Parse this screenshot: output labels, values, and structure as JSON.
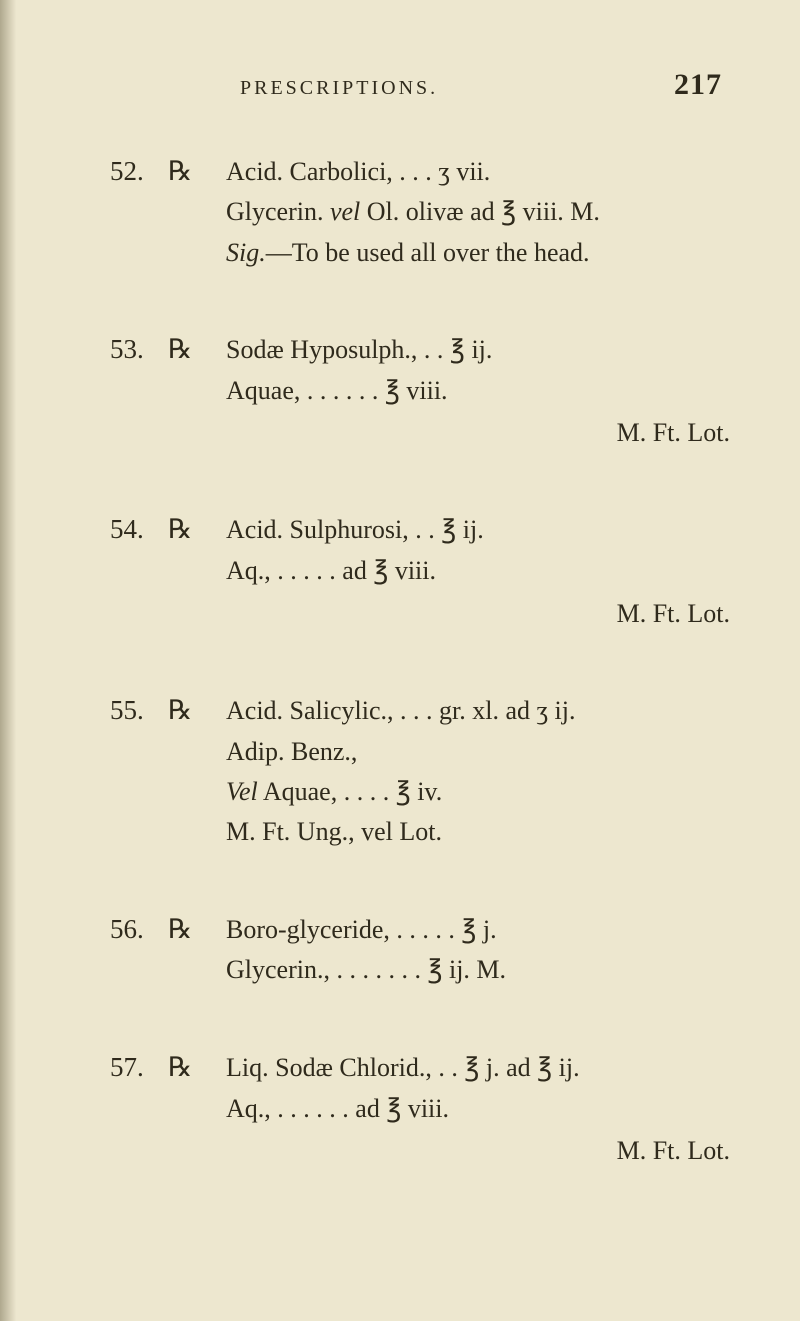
{
  "page": {
    "running_title": "PRESCRIPTIONS.",
    "page_number": "217",
    "background_color": "#ede7cf",
    "text_color": "#2f2a1c",
    "base_fontsize_pt": 20,
    "font_family": "Georgia serif"
  },
  "entries": [
    {
      "num": "52.",
      "rx": "℞",
      "lines": [
        "Acid. Carbolici,  .  .  .    ʒ vii.",
        "Glycerin. <i>vel</i> Ol. olivæ ad  ℥ viii.   M.",
        "<i>Sig.</i>—To be used all over the head."
      ]
    },
    {
      "num": "53.",
      "rx": "℞",
      "lines": [
        "Sodæ Hyposulph.,  .  .    ℥ ij.",
        "Aquae,  .  .  .  .  .  .    ℥ viii."
      ],
      "tail": "M.   Ft.   Lot."
    },
    {
      "num": "54.",
      "rx": "℞",
      "lines": [
        "Acid. Sulphurosi,  .  .    ℥ ij.",
        "Aq.,    .  .  .  .  . ad   ℥ viii."
      ],
      "tail": "M.  Ft.  Lot."
    },
    {
      "num": "55.",
      "rx": "℞",
      "lines": [
        "Acid. Salicylic., .  .  .   gr. xl. ad ʒ ij.",
        "Adip. Benz.,",
        "<i>Vel</i> Aquae,    .  .  .  .    ℥ iv.",
        "      M.  Ft.  Ung., vel Lot."
      ]
    },
    {
      "num": "56.",
      "rx": "℞",
      "lines": [
        "Boro-glyceride,  .  .  .  .  .    ℥ j.",
        "Glycerin., .  .  .  .  .  .  .    ℥ ij.   M."
      ]
    },
    {
      "num": "57.",
      "rx": "℞",
      "lines": [
        "Liq. Sodæ Chlorid.,   .  .    ℥ j. ad ℥ ij.",
        "Aq.,    .  .  .  .  .  . ad  ℥ viii."
      ],
      "tail": "M.  Ft.  Lot."
    }
  ]
}
